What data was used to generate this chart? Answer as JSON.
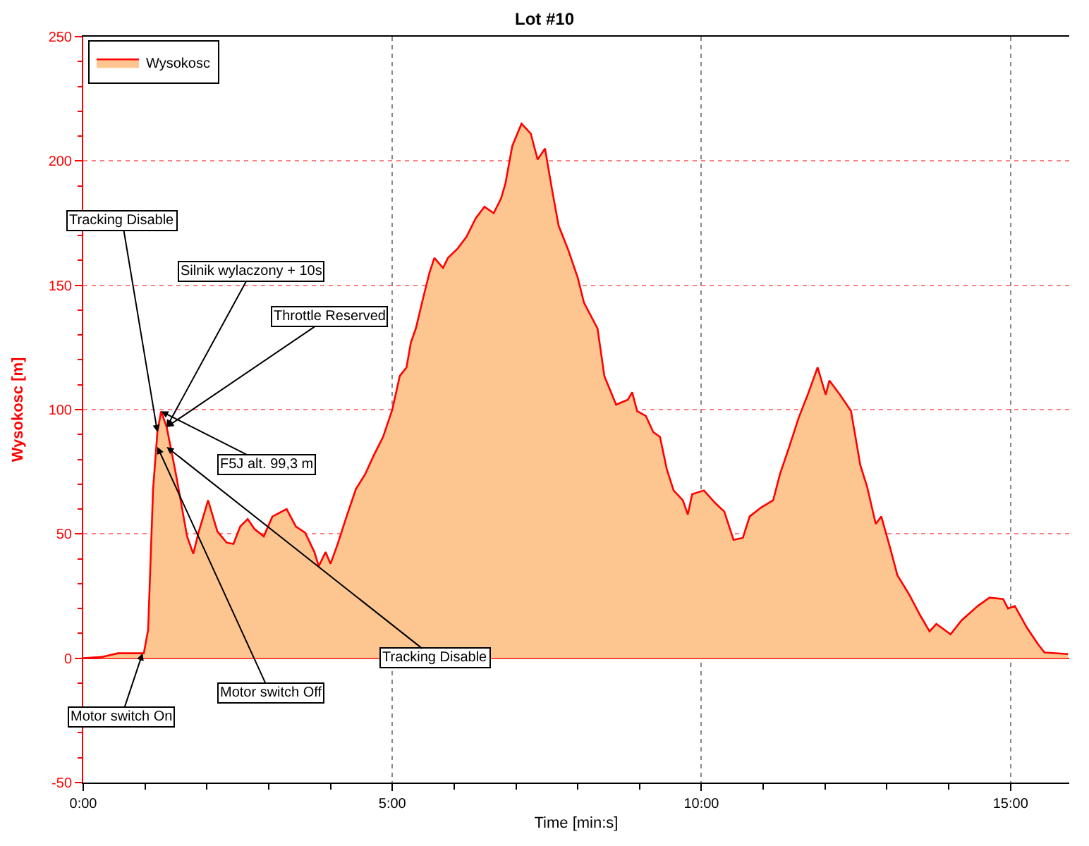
{
  "chart_data": {
    "type": "area",
    "title": "Lot #10",
    "xlabel": "Time [min:s]",
    "ylabel": "Wysokosc [m]",
    "xlim": [
      0,
      15.95
    ],
    "ylim": [
      -50,
      250
    ],
    "xticks": [
      {
        "value": 0,
        "label": "0:00"
      },
      {
        "value": 1,
        "label": null
      },
      {
        "value": 2,
        "label": null
      },
      {
        "value": 3,
        "label": null
      },
      {
        "value": 4,
        "label": null
      },
      {
        "value": 5,
        "label": "5:00"
      },
      {
        "value": 6,
        "label": null
      },
      {
        "value": 7,
        "label": null
      },
      {
        "value": 8,
        "label": null
      },
      {
        "value": 9,
        "label": null
      },
      {
        "value": 10,
        "label": "10:00"
      },
      {
        "value": 11,
        "label": null
      },
      {
        "value": 12,
        "label": null
      },
      {
        "value": 13,
        "label": null
      },
      {
        "value": 14,
        "label": null
      },
      {
        "value": 15,
        "label": "15:00"
      }
    ],
    "yticks": [
      -50,
      {
        "value": -40,
        "label": null
      },
      {
        "value": -30,
        "label": null
      },
      {
        "value": -20,
        "label": null
      },
      {
        "value": -10,
        "label": null
      },
      0,
      {
        "value": 10,
        "label": null
      },
      {
        "value": 20,
        "label": null
      },
      {
        "value": 30,
        "label": null
      },
      {
        "value": 40,
        "label": null
      },
      50,
      {
        "value": 60,
        "label": null
      },
      {
        "value": 70,
        "label": null
      },
      {
        "value": 80,
        "label": null
      },
      {
        "value": 90,
        "label": null
      },
      100,
      {
        "value": 110,
        "label": null
      },
      {
        "value": 120,
        "label": null
      },
      {
        "value": 130,
        "label": null
      },
      {
        "value": 140,
        "label": null
      },
      150,
      {
        "value": 160,
        "label": null
      },
      {
        "value": 170,
        "label": null
      },
      {
        "value": 180,
        "label": null
      },
      {
        "value": 190,
        "label": null
      },
      200,
      {
        "value": 210,
        "label": null
      },
      {
        "value": 220,
        "label": null
      },
      {
        "value": 230,
        "label": null
      },
      {
        "value": 240,
        "label": null
      },
      250
    ],
    "grid": true,
    "legend": "top left",
    "marker": "none",
    "line_style": "solid",
    "series": [
      {
        "name": "Wysokosc",
        "color": "#ff0000",
        "x": [
          0,
          0.3,
          0.56,
          0.98,
          1.05,
          1.13,
          1.2,
          1.26,
          1.35,
          1.5,
          1.68,
          1.78,
          1.87,
          2.02,
          2.17,
          2.32,
          2.43,
          2.54,
          2.66,
          2.77,
          2.92,
          3.06,
          3.29,
          3.44,
          3.59,
          3.74,
          3.81,
          3.92,
          4.0,
          4.11,
          4.26,
          4.41,
          4.56,
          4.7,
          4.85,
          5.0,
          5.12,
          5.23,
          5.3,
          5.38,
          5.49,
          5.6,
          5.68,
          5.82,
          5.9,
          6.05,
          6.2,
          6.35,
          6.49,
          6.64,
          6.76,
          6.83,
          6.94,
          7.09,
          7.24,
          7.35,
          7.47,
          7.58,
          7.69,
          7.84,
          8.0,
          8.1,
          8.32,
          8.43,
          8.62,
          8.81,
          8.88,
          8.96,
          9.1,
          9.22,
          9.33,
          9.44,
          9.55,
          9.7,
          9.78,
          9.85,
          10.04,
          10.22,
          10.37,
          10.52,
          10.67,
          10.78,
          10.97,
          11.16,
          11.27,
          11.42,
          11.57,
          11.72,
          11.88,
          12.01,
          12.07,
          12.24,
          12.42,
          12.57,
          12.68,
          12.82,
          12.91,
          13.06,
          13.17,
          13.36,
          13.54,
          13.69,
          13.8,
          14.03,
          14.21,
          14.47,
          14.66,
          14.88,
          14.96,
          15.07,
          15.26,
          15.44,
          15.55,
          15.93
        ],
        "values": [
          0,
          0.5,
          2,
          2,
          11.5,
          68,
          91,
          99.3,
          93,
          74,
          49,
          42,
          51,
          63.5,
          51,
          46.5,
          46,
          53,
          56,
          52,
          49,
          57,
          60,
          53,
          50.5,
          42.7,
          37,
          42.7,
          38,
          45.5,
          57,
          68,
          74,
          81.6,
          89,
          100,
          113.5,
          117,
          127,
          132.6,
          144,
          155,
          161,
          157,
          161,
          164.6,
          169.5,
          177,
          181.6,
          179,
          185,
          191,
          206,
          215,
          211,
          200.6,
          205,
          189,
          174,
          164.6,
          153,
          143,
          132.6,
          113.5,
          102,
          104,
          107,
          99.4,
          97.5,
          91,
          89,
          76,
          67.5,
          63.5,
          57.8,
          66,
          67.5,
          62.5,
          59,
          47.6,
          48.4,
          57,
          60.7,
          63.5,
          74,
          85,
          96.5,
          106,
          117,
          106,
          111.7,
          106,
          99.4,
          77.7,
          69,
          54,
          57,
          43.7,
          33.4,
          25.7,
          17.2,
          10.8,
          13.8,
          9.6,
          15.3,
          21,
          24.4,
          23.8,
          20,
          21,
          12.5,
          5.8,
          2.3,
          1.7
        ]
      }
    ],
    "annotations": [
      {
        "text": "Silnik wylaczony + 10s",
        "x": 1.35,
        "y": 93
      },
      {
        "text": "Throttle Reserved",
        "x": 1.35,
        "y": 93
      },
      {
        "text": "Tracking Disable",
        "x": 1.2,
        "y": 91
      },
      {
        "text": "Motor switch On",
        "x": 0.96,
        "y": 2
      },
      {
        "text": "Motor switch Off",
        "x": 1.2,
        "y": 85
      },
      {
        "text": "Tracking Disable",
        "x": 1.35,
        "y": 85
      },
      {
        "text": "F5J alt. 99,3 m",
        "x": 1.26,
        "y": 99.3
      }
    ]
  }
}
